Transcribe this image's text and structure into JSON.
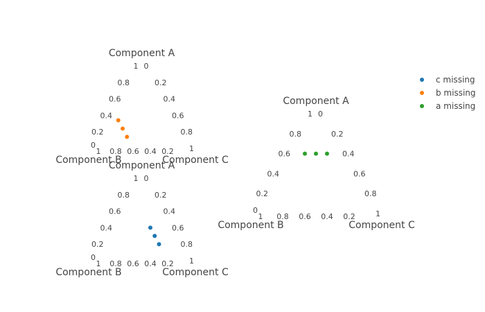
{
  "chart_data": [
    {
      "type": "scatter",
      "subtype": "ternary",
      "axis_titles": {
        "a": "Component A",
        "b": "Component B",
        "c": "Component C"
      },
      "ticks": {
        "a": [
          "0.2",
          "0.4",
          "0.6",
          "0.8",
          "1"
        ],
        "b": [
          "0",
          "1",
          "0.8",
          "0.6",
          "0.4",
          "0.2"
        ],
        "c": [
          "0",
          "0.2",
          "0.4",
          "0.6",
          "0.8",
          "1"
        ]
      },
      "series": [
        {
          "name": "b missing",
          "color": "#ff7f0e",
          "points": [
            {
              "a": 0.34,
              "b": 0.6,
              "c": 0.06
            },
            {
              "a": 0.24,
              "b": 0.6,
              "c": 0.16
            },
            {
              "a": 0.14,
              "b": 0.6,
              "c": 0.26
            }
          ]
        }
      ]
    },
    {
      "type": "scatter",
      "subtype": "ternary",
      "axis_titles": {
        "a": "Component A",
        "b": "Component B",
        "c": "Component C"
      },
      "ticks": {
        "a": [
          "0.2",
          "0.4",
          "0.6",
          "0.8",
          "1"
        ],
        "b": [
          "0",
          "1",
          "0.8",
          "0.6",
          "0.4",
          "0.2"
        ],
        "c": [
          "0",
          "0.2",
          "0.4",
          "0.6",
          "0.8",
          "1"
        ]
      },
      "series": [
        {
          "name": "c missing",
          "color": "#1f77b4",
          "points": [
            {
              "a": 0.2,
              "b": 0.2,
              "c": 0.6
            },
            {
              "a": 0.3,
              "b": 0.2,
              "c": 0.5
            },
            {
              "a": 0.4,
              "b": 0.2,
              "c": 0.4
            }
          ]
        }
      ]
    },
    {
      "type": "scatter",
      "subtype": "ternary",
      "axis_titles": {
        "a": "Component A",
        "b": "Component B",
        "c": "Component C"
      },
      "ticks": {
        "a": [
          "0.2",
          "0.4",
          "0.6",
          "0.8",
          "1"
        ],
        "b": [
          "0",
          "1",
          "0.8",
          "0.6",
          "0.4",
          "0.2"
        ],
        "c": [
          "0",
          "0.2",
          "0.4",
          "0.6",
          "0.8",
          "1"
        ]
      },
      "series": [
        {
          "name": "a missing",
          "color": "#2ca02c",
          "points": [
            {
              "a": 0.6,
              "b": 0.3,
              "c": 0.1
            },
            {
              "a": 0.6,
              "b": 0.2,
              "c": 0.2
            },
            {
              "a": 0.6,
              "b": 0.1,
              "c": 0.3
            }
          ]
        }
      ]
    }
  ],
  "legend": {
    "position": "top-right",
    "items": [
      {
        "label": "c missing",
        "color": "#1f77b4"
      },
      {
        "label": "b missing",
        "color": "#ff7f0e"
      },
      {
        "label": "a missing",
        "color": "#2ca02c"
      }
    ]
  }
}
